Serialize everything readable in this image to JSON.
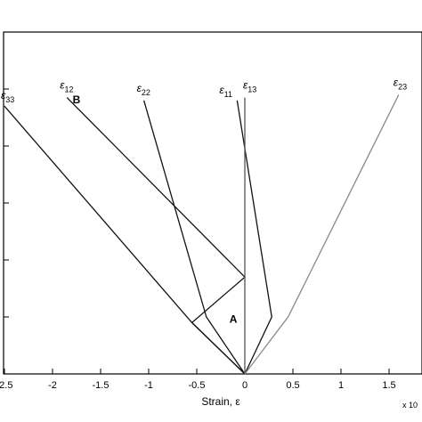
{
  "chart_data": {
    "type": "line",
    "title": "",
    "xlabel": "Strain, ε",
    "ylabel": "",
    "xlim": [
      -2.5,
      1.75
    ],
    "ylim": [
      0,
      8
    ],
    "grid": false,
    "x_ticks": [
      -2.5,
      -2,
      -1.5,
      -1,
      -0.5,
      0,
      0.5,
      1,
      1.5
    ],
    "x_tick_labels": [
      "-2.5",
      "-2",
      "-1.5",
      "-1",
      "-0.5",
      "0",
      "0.5",
      "1",
      "1.5"
    ],
    "x_multiplier_label": "x 10",
    "y_ticks": [
      1,
      2,
      3,
      4,
      5,
      6
    ],
    "annotations": [
      {
        "text": "A",
        "x": -0.12,
        "y": 0.9
      },
      {
        "text": "B",
        "x": -1.75,
        "y": 4.75
      }
    ],
    "series": [
      {
        "name": "ε33",
        "label_base": "ε",
        "label_sub": "33",
        "color": "#111111",
        "x": [
          0,
          -0.55,
          -2.5
        ],
        "y": [
          0,
          0.9,
          4.7
        ]
      },
      {
        "name": "ε12",
        "label_base": "ε",
        "label_sub": "12",
        "color": "#111111",
        "x": [
          0,
          -0.55,
          0,
          -1.85
        ],
        "y": [
          0,
          0.9,
          1.7,
          4.85
        ]
      },
      {
        "name": "ε22",
        "label_base": "ε",
        "label_sub": "22",
        "color": "#111111",
        "x": [
          0,
          -0.4,
          -1.05
        ],
        "y": [
          0,
          1.0,
          4.8
        ]
      },
      {
        "name": "ε11",
        "label_base": "ε",
        "label_sub": "11",
        "color": "#111111",
        "x": [
          0,
          0.28,
          -0.08
        ],
        "y": [
          0,
          1.0,
          4.8
        ]
      },
      {
        "name": "ε13",
        "label_base": "ε",
        "label_sub": "13",
        "color": "#555555",
        "x": [
          0,
          0
        ],
        "y": [
          0,
          4.85
        ]
      },
      {
        "name": "ε23",
        "label_base": "ε",
        "label_sub": "23",
        "color": "#8a8a8a",
        "x": [
          0,
          0.45,
          1.6
        ],
        "y": [
          0,
          1.0,
          4.9
        ]
      }
    ]
  }
}
